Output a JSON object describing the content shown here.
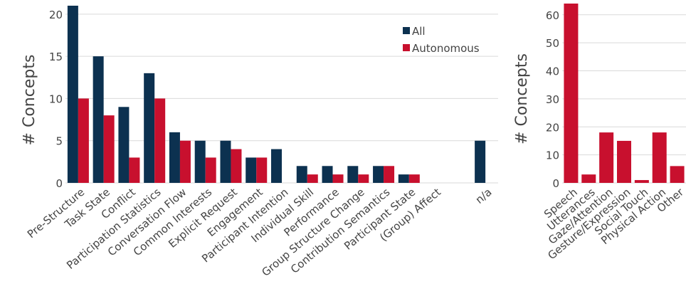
{
  "chart_data": [
    {
      "type": "bar",
      "ylabel": "# Concepts",
      "categories": [
        "Pre-Structure",
        "Task State",
        "Conflict",
        "Participation Statistics",
        "Conversation Flow",
        "Common Interests",
        "Explicit Request",
        "Engagement",
        "Participant Intention",
        "Individual Skill",
        "Performance",
        "Group Structure Change",
        "Contribution Semantics",
        "Participant State",
        "(Group) Affect",
        null,
        "n/a"
      ],
      "series": [
        {
          "name": "All",
          "color": "#0c3150",
          "values": [
            21,
            15,
            9,
            13,
            6,
            5,
            5,
            3,
            4,
            2,
            2,
            2,
            2,
            1,
            0,
            null,
            5
          ]
        },
        {
          "name": "Autonomous",
          "color": "#c8102e",
          "values": [
            10,
            8,
            3,
            10,
            5,
            3,
            4,
            3,
            0,
            1,
            1,
            1,
            2,
            1,
            0,
            null,
            0
          ]
        }
      ],
      "ylim": [
        0,
        21
      ],
      "yticks": [
        0,
        5,
        10,
        15,
        20
      ],
      "grid": true,
      "legend": "upper right"
    },
    {
      "type": "bar",
      "ylabel": "# Concepts",
      "categories": [
        "Speech",
        "Utterances",
        "Gaze/Attention",
        "Gesture/Expression",
        "Social Touch",
        "Physical Action",
        "Other"
      ],
      "values": [
        64,
        3,
        18,
        15,
        1,
        18,
        6
      ],
      "color": "#c8102e",
      "ylim": [
        0,
        64
      ],
      "yticks": [
        0,
        10,
        20,
        30,
        40,
        50,
        60
      ],
      "grid": true
    }
  ]
}
